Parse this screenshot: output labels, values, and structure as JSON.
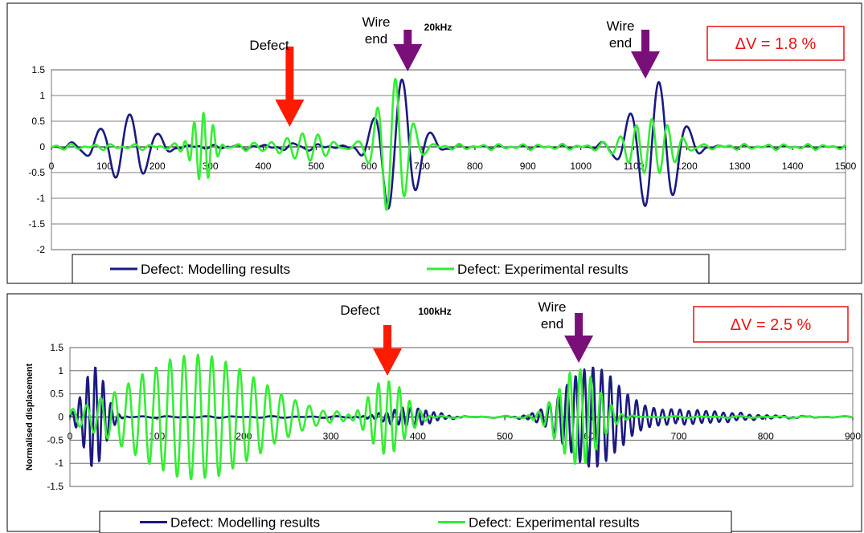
{
  "colors": {
    "modelling": "#1a1a80",
    "experimental": "#33ee33",
    "defect_arrow": "#ff1a00",
    "wire_arrow": "#7a0f7a",
    "delta_box": "#ee1111",
    "grid": "#555555"
  },
  "chart_data": [
    {
      "type": "line",
      "title": "20kHz",
      "ylabel": "",
      "xlabel": "",
      "xlim": [
        0,
        1500
      ],
      "ylim": [
        -2,
        1.5
      ],
      "x_ticks": [
        "0",
        "100",
        "200",
        "300",
        "400",
        "500",
        "600",
        "700",
        "800",
        "900",
        "1000",
        "1100",
        "1200",
        "1300",
        "1400",
        "1500"
      ],
      "y_ticks": [
        "1.5",
        "1",
        "0.5",
        "0",
        "-0.5",
        "-1",
        "-1.5",
        "-2"
      ],
      "grid": "horizontal",
      "legend_placement": "bottom",
      "delta_label": "ΔV = 1.8 %",
      "annotations": [
        {
          "text": "Defect",
          "color": "red",
          "x": 450
        },
        {
          "text": "Wire end",
          "color": "purple",
          "x": 673
        },
        {
          "text": "Wire end",
          "color": "purple",
          "x": 1122
        }
      ],
      "series": [
        {
          "name": "Defect: Modelling results",
          "packets": [
            {
              "center": 140,
              "amplitude": 0.65,
              "sigma": 45,
              "period": 55
            },
            {
              "center": 655,
              "amplitude": 1.35,
              "sigma": 35,
              "period": 55
            },
            {
              "center": 1140,
              "amplitude": 1.3,
              "sigma": 40,
              "period": 55
            },
            {
              "center": 450,
              "amplitude": 0.05,
              "sigma": 60,
              "period": 55
            }
          ],
          "noise": 0.04
        },
        {
          "name": "Defect: Experimental results",
          "packets": [
            {
              "center": 285,
              "amplitude": 0.7,
              "sigma": 18,
              "period": 18
            },
            {
              "center": 470,
              "amplitude": 0.25,
              "sigma": 45,
              "period": 30
            },
            {
              "center": 645,
              "amplitude": 1.3,
              "sigma": 28,
              "period": 35
            },
            {
              "center": 1130,
              "amplitude": 0.55,
              "sigma": 40,
              "period": 30
            }
          ],
          "noise": 0.06
        }
      ]
    },
    {
      "type": "line",
      "title": "100kHz",
      "ylabel": "Normalised displacement",
      "xlabel": "",
      "xlim": [
        0,
        900
      ],
      "ylim": [
        -1.5,
        1.5
      ],
      "x_ticks": [
        "0",
        "100",
        "200",
        "300",
        "400",
        "500",
        "600",
        "700",
        "800",
        "900"
      ],
      "y_ticks": [
        "1.5",
        "1",
        "0.5",
        "0",
        "-0.5",
        "-1",
        "-1.5"
      ],
      "grid": "horizontal",
      "legend_placement": "bottom",
      "delta_label": "ΔV = 2.5 %",
      "annotations": [
        {
          "text": "Defect",
          "color": "red",
          "x": 365
        },
        {
          "text": "Wire end",
          "color": "purple",
          "x": 585
        }
      ],
      "series": [
        {
          "name": "Defect: Modelling results",
          "packets": [
            {
              "center": 28,
              "amplitude": 1.1,
              "sigma": 12,
              "period": 9
            },
            {
              "center": 390,
              "amplitude": 0.2,
              "sigma": 25,
              "period": 9
            },
            {
              "center": 600,
              "amplitude": 1.05,
              "sigma": 30,
              "period": 10
            },
            {
              "center": 700,
              "amplitude": 0.15,
              "sigma": 60,
              "period": 10
            }
          ],
          "noise": 0.02
        },
        {
          "name": "Defect: Experimental results",
          "packets": [
            {
              "center": 145,
              "amplitude": 1.35,
              "sigma": 70,
              "period": 16
            },
            {
              "center": 365,
              "amplitude": 0.8,
              "sigma": 20,
              "period": 12
            },
            {
              "center": 585,
              "amplitude": 1.05,
              "sigma": 22,
              "period": 12
            }
          ],
          "noise": 0.02
        }
      ]
    }
  ]
}
